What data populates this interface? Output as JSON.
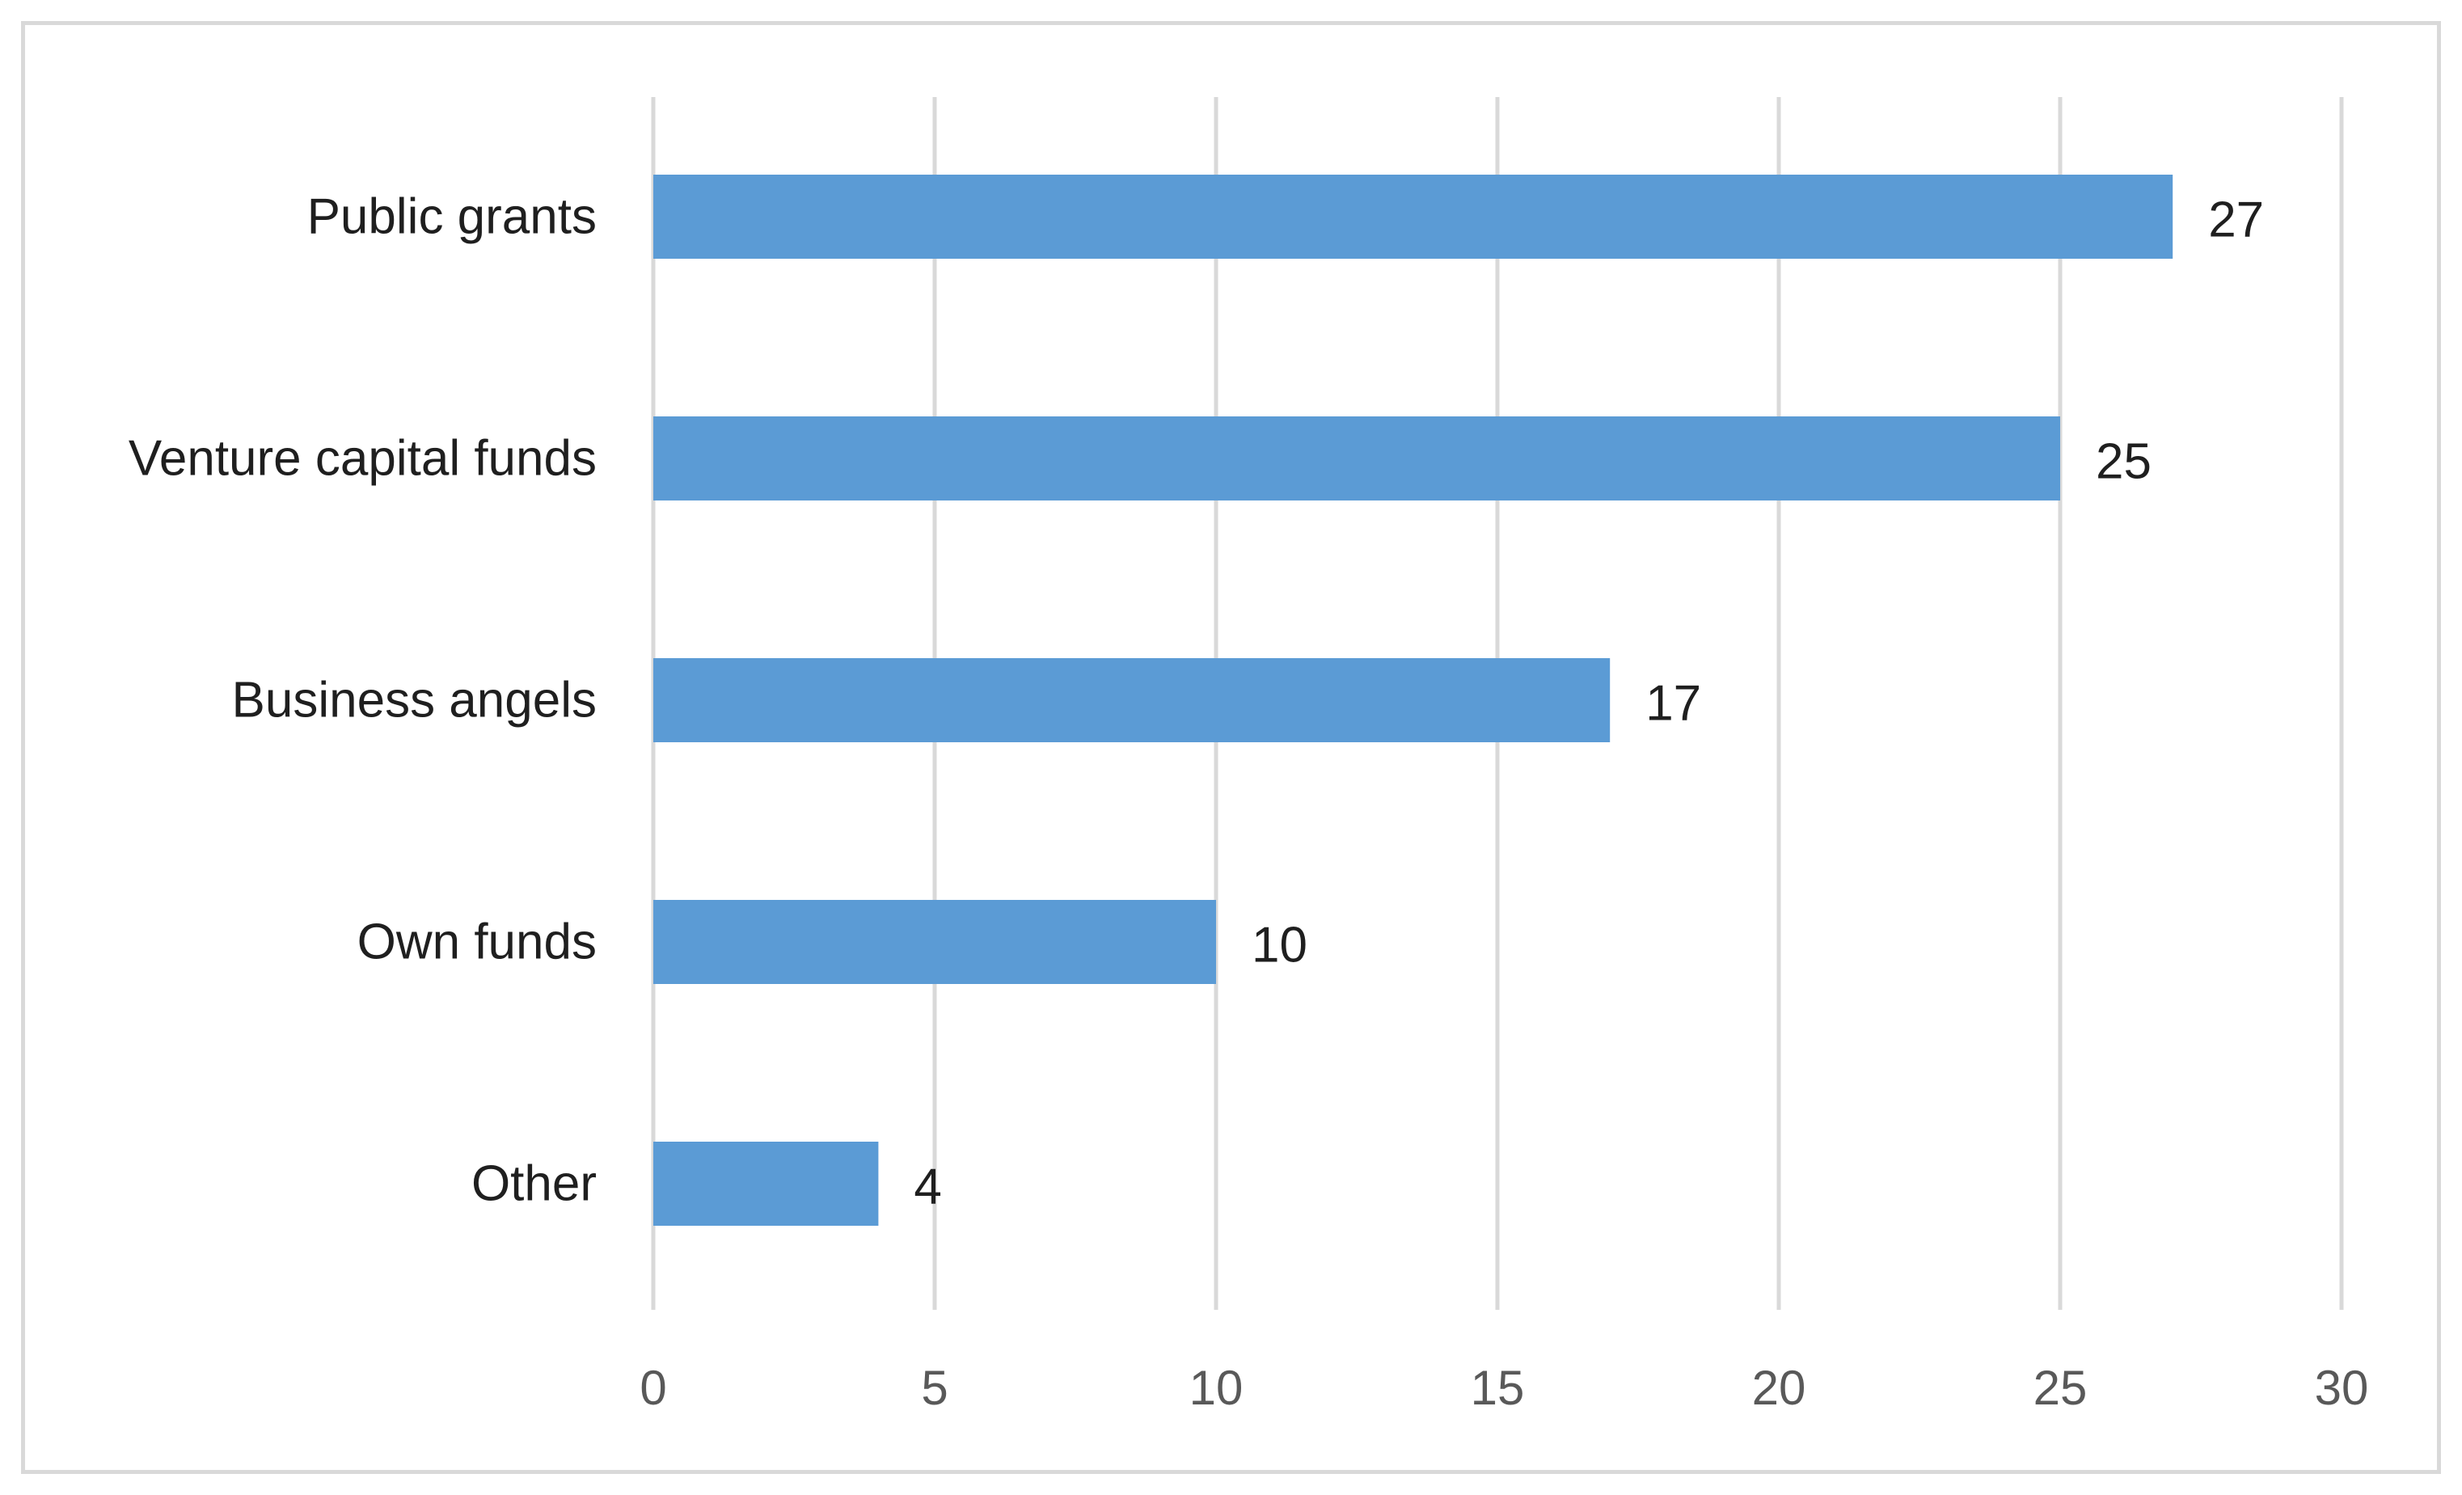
{
  "chart_data": {
    "type": "bar",
    "orientation": "horizontal",
    "title": "",
    "xlabel": "",
    "ylabel": "",
    "categories": [
      "Public grants",
      "Venture capital funds",
      "Business angels",
      "Own funds",
      "Other"
    ],
    "values": [
      27,
      25,
      17,
      10,
      4
    ],
    "xlim": [
      0,
      30
    ],
    "ticks": [
      "0",
      "5",
      "10",
      "15",
      "20",
      "25",
      "30"
    ],
    "data_labels": [
      "27",
      "25",
      "17",
      "10",
      "4"
    ],
    "grid": "vertical major gridlines",
    "legend": "none",
    "bar_color": "#5b9bd5"
  }
}
